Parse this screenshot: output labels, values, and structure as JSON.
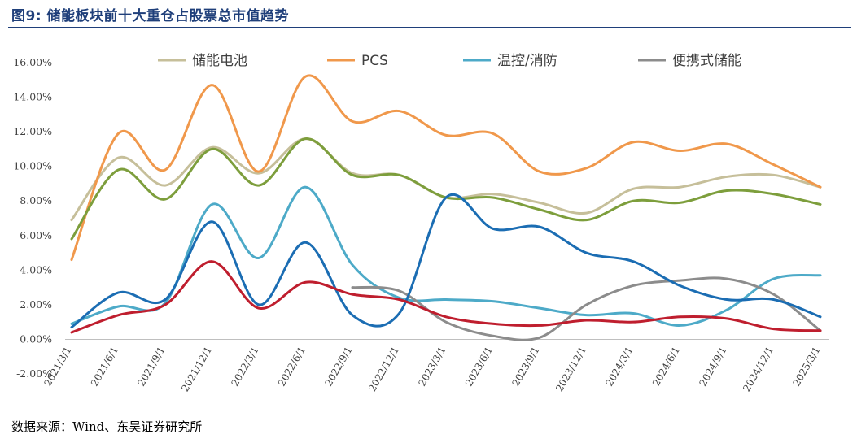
{
  "title": "图9:  储能板块前十大重仓占股票总市值趋势",
  "source": "数据来源：Wind、东吴证券研究所",
  "chart_data": {
    "type": "line",
    "categories": [
      "2021/3/1",
      "2021/6/1",
      "2021/9/1",
      "2021/12/1",
      "2022/3/1",
      "2022/6/1",
      "2022/9/1",
      "2022/12/1",
      "2023/3/1",
      "2023/6/1",
      "2023/9/1",
      "2023/12/1",
      "2024/3/1",
      "2024/6/1",
      "2024/9/1",
      "2024/12/1",
      "2025/3/1"
    ],
    "ylim": [
      -2,
      16
    ],
    "yticks": [
      "-2.00%",
      "0.00%",
      "2.00%",
      "4.00%",
      "6.00%",
      "8.00%",
      "10.00%",
      "12.00%",
      "14.00%",
      "16.00%"
    ],
    "legend_position": "top",
    "series": [
      {
        "name": "储能电池",
        "color": "#c6bf9a",
        "values": [
          6.9,
          10.5,
          8.9,
          11.1,
          9.6,
          11.6,
          9.6,
          9.5,
          8.2,
          8.4,
          7.9,
          7.3,
          8.7,
          8.8,
          9.4,
          9.5,
          8.8
        ]
      },
      {
        "name": "PCS",
        "color": "#f0984b",
        "values": [
          4.6,
          11.9,
          9.8,
          14.7,
          9.7,
          15.2,
          12.6,
          13.2,
          11.8,
          11.9,
          9.7,
          9.9,
          11.4,
          10.9,
          11.3,
          10.1,
          8.8
        ]
      },
      {
        "name": "温控/消防",
        "color": "#4daac8",
        "values": [
          0.9,
          1.9,
          2.1,
          7.8,
          4.7,
          8.8,
          4.3,
          2.4,
          2.3,
          2.2,
          1.8,
          1.4,
          1.5,
          0.8,
          1.7,
          3.5,
          3.7
        ]
      },
      {
        "name": "便携式储能",
        "color": "#8c8c8c",
        "values": [
          null,
          null,
          null,
          null,
          null,
          null,
          3.0,
          2.8,
          1.0,
          0.2,
          0.1,
          2.0,
          3.1,
          3.4,
          3.5,
          2.6,
          0.5
        ]
      },
      {
        "name": "",
        "color": "#7d9e3c",
        "legend": false,
        "values": [
          5.8,
          9.8,
          8.1,
          11.0,
          8.9,
          11.6,
          9.5,
          9.5,
          8.2,
          8.2,
          7.5,
          6.9,
          8.0,
          7.9,
          8.6,
          8.4,
          7.8
        ]
      },
      {
        "name": "",
        "color": "#1b6db3",
        "legend": false,
        "values": [
          0.7,
          2.7,
          2.3,
          6.8,
          2.0,
          5.6,
          1.4,
          1.5,
          8.2,
          6.4,
          6.5,
          5.0,
          4.5,
          3.1,
          2.3,
          2.3,
          1.3
        ]
      },
      {
        "name": "",
        "color": "#bf1e2e",
        "legend": false,
        "values": [
          0.4,
          1.4,
          2.0,
          4.5,
          1.8,
          3.3,
          2.6,
          2.3,
          1.3,
          0.9,
          0.8,
          1.1,
          1.0,
          1.3,
          1.2,
          0.6,
          0.5
        ]
      }
    ]
  }
}
